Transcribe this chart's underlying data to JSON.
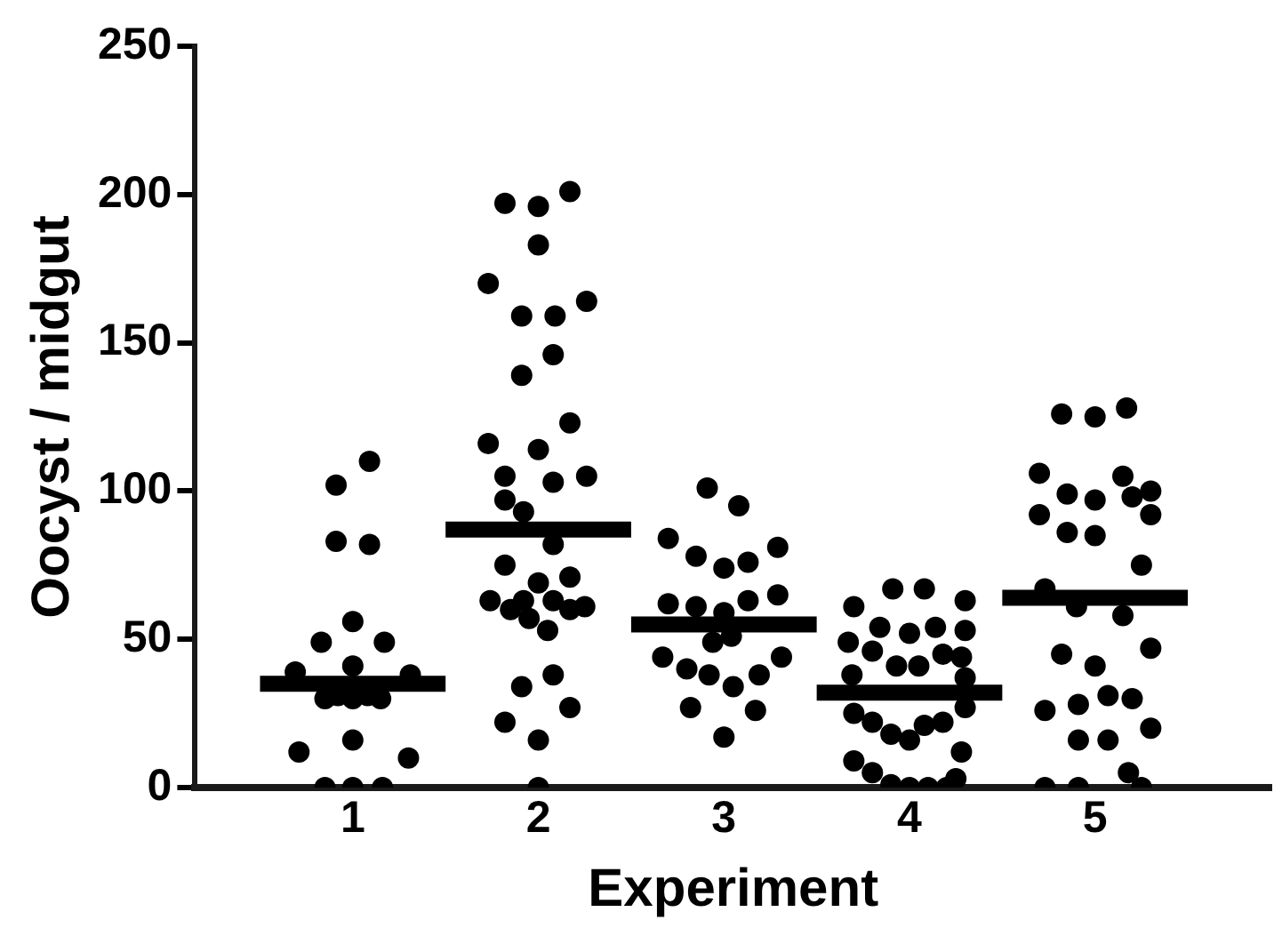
{
  "chart_data": {
    "type": "scatter",
    "xlabel": "Experiment",
    "ylabel": "Oocyst / midgut",
    "xlim": [
      0.15,
      5.95
    ],
    "xticks": [
      1,
      2,
      3,
      4,
      5
    ],
    "ylim": [
      0,
      250
    ],
    "yticks": [
      0,
      50,
      100,
      150,
      200,
      250
    ],
    "grid": false,
    "legend": false,
    "marker": "circle",
    "series": [
      {
        "color": "#000000",
        "x": [
          1.09,
          0.91,
          0.91,
          1.09,
          1.0,
          0.83,
          1.17,
          1.0,
          0.69,
          1.31,
          0.85,
          0.92,
          1.0,
          1.08,
          1.15,
          1.0,
          0.71,
          1.3,
          0.85,
          1.0,
          1.16,
          1.82,
          2.0,
          2.17,
          2.0,
          1.73,
          1.91,
          2.09,
          2.26,
          2.08,
          1.91,
          2.17,
          1.73,
          2.0,
          1.82,
          2.08,
          2.26,
          1.82,
          1.92,
          2.08,
          1.82,
          2.17,
          2.0,
          1.74,
          1.85,
          1.92,
          2.08,
          2.17,
          2.25,
          1.95,
          2.05,
          2.08,
          1.91,
          2.17,
          1.82,
          2.0,
          2.0,
          2.91,
          3.08,
          2.7,
          2.85,
          3.0,
          3.13,
          3.29,
          2.7,
          2.85,
          3.0,
          3.13,
          3.29,
          2.94,
          3.04,
          2.67,
          2.8,
          2.92,
          3.05,
          3.19,
          3.31,
          2.82,
          3.17,
          3.0,
          3.91,
          4.08,
          3.7,
          3.84,
          4.0,
          4.14,
          3.67,
          3.8,
          3.93,
          4.05,
          4.18,
          3.69,
          3.7,
          3.8,
          3.9,
          4.0,
          4.08,
          4.18,
          3.7,
          3.8,
          3.9,
          4.0,
          4.1,
          4.3,
          4.3,
          4.28,
          4.3,
          4.3,
          4.28,
          4.25,
          4.2,
          4.82,
          5.0,
          4.7,
          4.85,
          5.0,
          4.7,
          4.85,
          5.0,
          4.73,
          4.9,
          4.82,
          5.0,
          4.73,
          4.91,
          5.07,
          4.91,
          5.07,
          4.73,
          4.91,
          5.17,
          5.15,
          5.3,
          5.2,
          5.3,
          5.25,
          5.15,
          5.3,
          5.2,
          5.3,
          5.18,
          5.25
        ],
        "values": [
          110,
          102,
          83,
          82,
          56,
          49,
          49,
          41,
          39,
          38,
          30,
          31,
          30,
          31,
          30,
          16,
          12,
          10,
          0,
          0,
          0,
          197,
          196,
          201,
          183,
          170,
          159,
          159,
          164,
          146,
          139,
          123,
          116,
          114,
          105,
          103,
          105,
          97,
          93,
          82,
          75,
          71,
          69,
          63,
          60,
          63,
          63,
          60,
          61,
          57,
          53,
          38,
          34,
          27,
          22,
          16,
          0,
          101,
          95,
          84,
          78,
          74,
          76,
          81,
          62,
          61,
          59,
          63,
          65,
          49,
          51,
          44,
          40,
          38,
          34,
          38,
          44,
          27,
          26,
          17,
          67,
          67,
          61,
          54,
          52,
          54,
          49,
          46,
          41,
          41,
          45,
          38,
          25,
          22,
          18,
          16,
          21,
          22,
          9,
          5,
          1,
          0,
          0,
          63,
          53,
          44,
          37,
          27,
          12,
          3,
          0,
          126,
          125,
          106,
          99,
          97,
          92,
          86,
          85,
          67,
          61,
          45,
          41,
          26,
          28,
          31,
          16,
          16,
          0,
          0,
          128,
          105,
          100,
          98,
          92,
          75,
          58,
          47,
          30,
          20,
          5,
          0
        ]
      },
      {
        "type": "line",
        "color": "#000000",
        "marker": "none",
        "x": [
          0.5,
          1.5
        ],
        "values": [
          35,
          35
        ]
      },
      {
        "type": "line",
        "color": "#000000",
        "marker": "none",
        "x": [
          1.5,
          2.5
        ],
        "values": [
          87,
          87
        ]
      },
      {
        "type": "line",
        "color": "#000000",
        "marker": "none",
        "x": [
          2.5,
          3.5
        ],
        "values": [
          55,
          55
        ]
      },
      {
        "type": "line",
        "color": "#000000",
        "marker": "none",
        "x": [
          3.5,
          4.5
        ],
        "values": [
          32,
          32
        ]
      },
      {
        "type": "line",
        "color": "#000000",
        "marker": "none",
        "x": [
          4.5,
          5.5
        ],
        "values": [
          64,
          64
        ]
      }
    ]
  }
}
